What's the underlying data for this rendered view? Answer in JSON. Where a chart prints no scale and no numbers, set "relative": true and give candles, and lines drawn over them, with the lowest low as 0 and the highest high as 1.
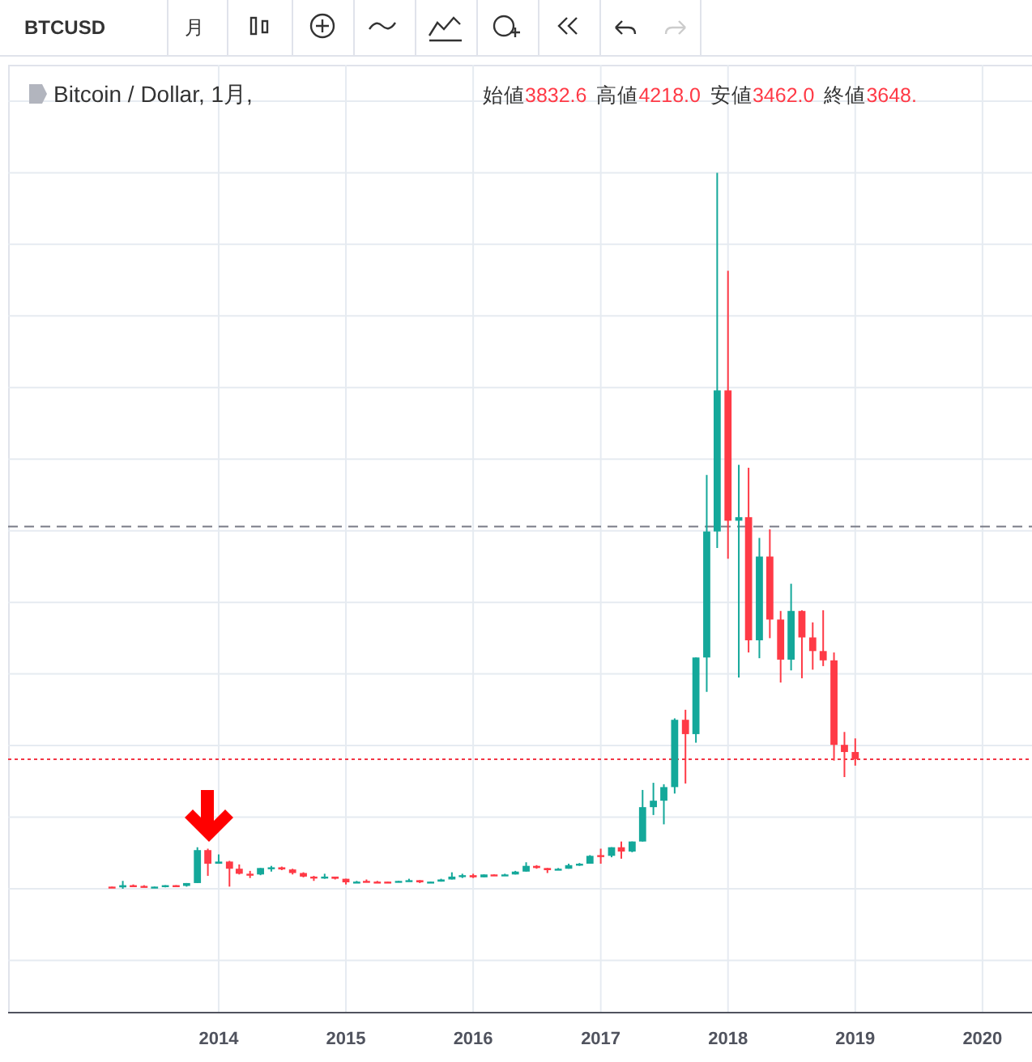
{
  "chart_data": {
    "type": "candlestick",
    "relative": true,
    "grid": true,
    "annotations": [
      "BTCUSD",
      "月",
      "Bitcoin / Dollar, 1月,",
      "始値",
      "3832.6",
      "高値",
      "4218.0",
      "安値",
      "3462.0",
      "終値",
      "3648."
    ],
    "xlim": [
      "2012-05-07",
      "2020-05-22"
    ],
    "xticks": [
      "2014",
      "2015",
      "2016",
      "2017",
      "2018",
      "2019",
      "2020"
    ],
    "ref_lines": [
      {
        "axis": "y",
        "value": 0.506,
        "color": "#787b86",
        "line_style": "dashed"
      },
      {
        "axis": "y",
        "value": 0.181,
        "color": "#f23645",
        "line_style": "dotted"
      }
    ],
    "series": [
      {
        "color": "#14a89a",
        "x": [
          "2013-04",
          "2013-07",
          "2013-08",
          "2013-10",
          "2013-11",
          "2014-01",
          "2014-05",
          "2014-06",
          "2014-11",
          "2015-02",
          "2015-06",
          "2015-07",
          "2015-09",
          "2015-10",
          "2015-11",
          "2015-12",
          "2016-02",
          "2016-04",
          "2016-05",
          "2016-06",
          "2016-09",
          "2016-10",
          "2016-11",
          "2016-12",
          "2017-02",
          "2017-04",
          "2017-05",
          "2017-06",
          "2017-07",
          "2017-08",
          "2017-10",
          "2017-11",
          "2017-12",
          "2018-02",
          "2018-04",
          "2018-07"
        ],
        "ohlc": [
          [
            0.002,
            0.011,
            0,
            0.005
          ],
          [
            0.002,
            0.003,
            0.001,
            0.003
          ],
          [
            0.003,
            0.005,
            0.002,
            0.005
          ],
          [
            0.004,
            0.008,
            0.003,
            0.008
          ],
          [
            0.008,
            0.058,
            0.008,
            0.054
          ],
          [
            0.035,
            0.048,
            0.035,
            0.038
          ],
          [
            0.02,
            0.029,
            0.019,
            0.029
          ],
          [
            0.029,
            0.032,
            0.024,
            0.03
          ],
          [
            0.015,
            0.021,
            0.014,
            0.017
          ],
          [
            0.009,
            0.011,
            0.008,
            0.01
          ],
          [
            0.009,
            0.011,
            0.009,
            0.011
          ],
          [
            0.011,
            0.014,
            0.01,
            0.012
          ],
          [
            0.009,
            0.01,
            0.009,
            0.01
          ],
          [
            0.01,
            0.014,
            0.01,
            0.013
          ],
          [
            0.013,
            0.023,
            0.013,
            0.017
          ],
          [
            0.017,
            0.021,
            0.015,
            0.019
          ],
          [
            0.016,
            0.02,
            0.016,
            0.02
          ],
          [
            0.019,
            0.021,
            0.018,
            0.02
          ],
          [
            0.02,
            0.025,
            0.02,
            0.024
          ],
          [
            0.024,
            0.037,
            0.024,
            0.032
          ],
          [
            0.026,
            0.029,
            0.026,
            0.028
          ],
          [
            0.028,
            0.035,
            0.028,
            0.033
          ],
          [
            0.033,
            0.036,
            0.032,
            0.035
          ],
          [
            0.035,
            0.047,
            0.035,
            0.046
          ],
          [
            0.046,
            0.058,
            0.044,
            0.058
          ],
          [
            0.052,
            0.066,
            0.051,
            0.066
          ],
          [
            0.066,
            0.138,
            0.066,
            0.114
          ],
          [
            0.114,
            0.148,
            0.103,
            0.123
          ],
          [
            0.123,
            0.146,
            0.09,
            0.142
          ],
          [
            0.142,
            0.238,
            0.133,
            0.236
          ],
          [
            0.216,
            0.323,
            0.204,
            0.323
          ],
          [
            0.323,
            0.578,
            0.275,
            0.499
          ],
          [
            0.499,
            1,
            0.476,
            0.696
          ],
          [
            0.514,
            0.592,
            0.295,
            0.519
          ],
          [
            0.347,
            0.49,
            0.322,
            0.464
          ],
          [
            0.32,
            0.426,
            0.305,
            0.388
          ]
        ]
      },
      {
        "color": "#ff3a46",
        "x": [
          "2013-03",
          "2013-05",
          "2013-06",
          "2013-09",
          "2013-12",
          "2014-02",
          "2014-03",
          "2014-04",
          "2014-07",
          "2014-08",
          "2014-09",
          "2014-10",
          "2014-12",
          "2015-01",
          "2015-03",
          "2015-04",
          "2015-05",
          "2015-08",
          "2016-01",
          "2016-03",
          "2016-07",
          "2016-08",
          "2017-01",
          "2017-03",
          "2017-09",
          "2018-01",
          "2018-03",
          "2018-05",
          "2018-06",
          "2018-08",
          "2018-09",
          "2018-10",
          "2018-11",
          "2018-12",
          "2019-01"
        ],
        "ohlc": [
          [
            0.003,
            0.003,
            0.002,
            0.002
          ],
          [
            0.005,
            0.006,
            0.003,
            0.004
          ],
          [
            0.004,
            0.005,
            0.002,
            0.003
          ],
          [
            0.005,
            0.005,
            0.003,
            0.004
          ],
          [
            0.054,
            0.056,
            0.018,
            0.035
          ],
          [
            0.038,
            0.039,
            0.003,
            0.028
          ],
          [
            0.028,
            0.034,
            0.02,
            0.021
          ],
          [
            0.021,
            0.025,
            0.015,
            0.02
          ],
          [
            0.03,
            0.031,
            0.026,
            0.027
          ],
          [
            0.027,
            0.028,
            0.02,
            0.022
          ],
          [
            0.022,
            0.023,
            0.016,
            0.017
          ],
          [
            0.017,
            0.018,
            0.011,
            0.015
          ],
          [
            0.017,
            0.017,
            0.013,
            0.014
          ],
          [
            0.014,
            0.014,
            0.006,
            0.009
          ],
          [
            0.011,
            0.013,
            0.009,
            0.01
          ],
          [
            0.01,
            0.011,
            0.008,
            0.009
          ],
          [
            0.01,
            0.01,
            0.009,
            0.009
          ],
          [
            0.012,
            0.012,
            0.008,
            0.009
          ],
          [
            0.019,
            0.021,
            0.015,
            0.016
          ],
          [
            0.02,
            0.02,
            0.018,
            0.019
          ],
          [
            0.032,
            0.033,
            0.028,
            0.029
          ],
          [
            0.029,
            0.029,
            0.022,
            0.026
          ],
          [
            0.047,
            0.056,
            0.035,
            0.046
          ],
          [
            0.058,
            0.066,
            0.042,
            0.052
          ],
          [
            0.236,
            0.25,
            0.147,
            0.216
          ],
          [
            0.696,
            0.863,
            0.461,
            0.514
          ],
          [
            0.519,
            0.588,
            0.33,
            0.347
          ],
          [
            0.464,
            0.502,
            0.35,
            0.376
          ],
          [
            0.376,
            0.388,
            0.288,
            0.32
          ],
          [
            0.388,
            0.389,
            0.294,
            0.351
          ],
          [
            0.351,
            0.372,
            0.306,
            0.332
          ],
          [
            0.332,
            0.389,
            0.311,
            0.319
          ],
          [
            0.319,
            0.33,
            0.179,
            0.201
          ],
          [
            0.201,
            0.219,
            0.156,
            0.191
          ],
          [
            0.191,
            0.21,
            0.172,
            0.181
          ]
        ]
      }
    ]
  }
}
